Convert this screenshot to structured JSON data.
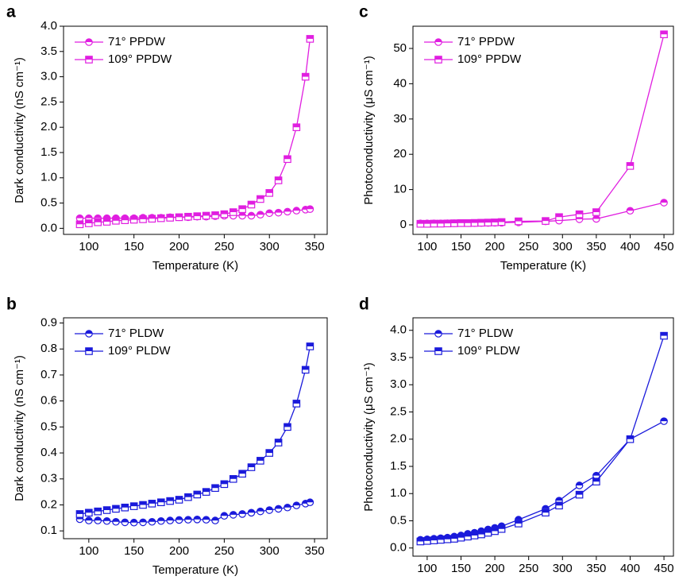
{
  "chart_data": [
    {
      "type": "line",
      "panel_label": "a",
      "xlabel": "Temperature (K)",
      "ylabel": "Dark conductivity (nS cm⁻¹)",
      "xlim": [
        72,
        364
      ],
      "xticks": [
        100,
        150,
        200,
        250,
        300,
        350
      ],
      "ylim": [
        -0.12,
        4.0
      ],
      "yticks": [
        {
          "value": 0,
          "label": "0.0"
        },
        0.5,
        {
          "value": 1,
          "label": "1.0"
        },
        1.5,
        {
          "value": 2,
          "label": "2.0"
        },
        2.5,
        {
          "value": 3,
          "label": "3.0"
        },
        3.5,
        {
          "value": 4,
          "label": "4.0"
        }
      ],
      "legend": "upper left",
      "x": [
        90,
        100,
        110,
        120,
        130,
        140,
        150,
        160,
        170,
        180,
        190,
        200,
        210,
        220,
        230,
        240,
        250,
        260,
        270,
        280,
        290,
        300,
        310,
        320,
        330,
        340,
        345
      ],
      "series": [
        {
          "name": "71°  PPDW",
          "color": "#e01ee0",
          "marker": "circle",
          "values": [
            0.2,
            0.2,
            0.2,
            0.2,
            0.2,
            0.2,
            0.2,
            0.21,
            0.21,
            0.21,
            0.22,
            0.22,
            0.22,
            0.23,
            0.23,
            0.24,
            0.25,
            0.25,
            0.25,
            0.25,
            0.27,
            0.3,
            0.31,
            0.33,
            0.35,
            0.37,
            0.38
          ]
        },
        {
          "name": "109°  PPDW",
          "color": "#e01ee0",
          "marker": "square",
          "values": [
            0.08,
            0.1,
            0.12,
            0.13,
            0.15,
            0.16,
            0.17,
            0.18,
            0.19,
            0.2,
            0.21,
            0.22,
            0.23,
            0.24,
            0.25,
            0.26,
            0.28,
            0.32,
            0.38,
            0.47,
            0.58,
            0.7,
            0.95,
            1.37,
            2.0,
            3.0,
            3.75
          ]
        }
      ]
    },
    {
      "type": "line",
      "panel_label": "b",
      "xlabel": "Temperature (K)",
      "ylabel": "Dark conductivity (nS cm⁻¹)",
      "xlim": [
        72,
        364
      ],
      "xticks": [
        100,
        150,
        200,
        250,
        300,
        350
      ],
      "ylim": [
        0.07,
        0.92
      ],
      "yticks": [
        0.1,
        0.2,
        0.3,
        0.4,
        0.5,
        0.6,
        0.7,
        0.8,
        0.9
      ],
      "legend": "upper left",
      "x": [
        90,
        100,
        110,
        120,
        130,
        140,
        150,
        160,
        170,
        180,
        190,
        200,
        210,
        220,
        230,
        240,
        250,
        260,
        270,
        280,
        290,
        300,
        310,
        320,
        330,
        340,
        345
      ],
      "series": [
        {
          "name": "71° PLDW",
          "color": "#1a1adb",
          "marker": "circle",
          "values": [
            0.145,
            0.14,
            0.14,
            0.138,
            0.135,
            0.133,
            0.132,
            0.133,
            0.135,
            0.138,
            0.14,
            0.142,
            0.143,
            0.144,
            0.143,
            0.14,
            0.158,
            0.162,
            0.165,
            0.17,
            0.175,
            0.18,
            0.185,
            0.19,
            0.198,
            0.205,
            0.21
          ]
        },
        {
          "name": "109° PLDW",
          "color": "#1a1adb",
          "marker": "square",
          "values": [
            0.165,
            0.17,
            0.175,
            0.18,
            0.185,
            0.19,
            0.195,
            0.2,
            0.205,
            0.21,
            0.215,
            0.22,
            0.23,
            0.24,
            0.25,
            0.265,
            0.28,
            0.3,
            0.32,
            0.345,
            0.37,
            0.4,
            0.44,
            0.5,
            0.59,
            0.72,
            0.81
          ]
        }
      ]
    },
    {
      "type": "line",
      "panel_label": "c",
      "xlabel": "Temperature (K)",
      "ylabel": "Photoconductivity (μS cm⁻¹)",
      "xlim": [
        79,
        464
      ],
      "xticks": [
        100,
        150,
        200,
        250,
        300,
        350,
        400,
        450
      ],
      "ylim": [
        -2.7,
        56.3
      ],
      "yticks": [
        0,
        10,
        20,
        30,
        40,
        50
      ],
      "legend": "upper left",
      "x": [
        90,
        100,
        110,
        120,
        130,
        140,
        150,
        160,
        170,
        180,
        190,
        200,
        210,
        235,
        275,
        295,
        325,
        350,
        400,
        450
      ],
      "series": [
        {
          "name": "71°  PPDW",
          "color": "#e01ee0",
          "marker": "circle",
          "values": [
            0.4,
            0.4,
            0.4,
            0.4,
            0.45,
            0.45,
            0.5,
            0.5,
            0.5,
            0.55,
            0.55,
            0.6,
            0.6,
            0.7,
            1.0,
            1.2,
            1.6,
            1.7,
            4.0,
            6.3
          ]
        },
        {
          "name": "109°  PPDW",
          "color": "#e01ee0",
          "marker": "square",
          "values": [
            0.3,
            0.3,
            0.35,
            0.35,
            0.4,
            0.45,
            0.5,
            0.5,
            0.55,
            0.6,
            0.65,
            0.7,
            0.8,
            1.0,
            1.1,
            2.2,
            3.0,
            3.6,
            16.7,
            54
          ]
        }
      ]
    },
    {
      "type": "line",
      "panel_label": "d",
      "xlabel": "Temperature (K)",
      "ylabel": "Photoconductivity (μS cm⁻¹)",
      "xlim": [
        79,
        464
      ],
      "xticks": [
        100,
        150,
        200,
        250,
        300,
        350,
        400,
        450
      ],
      "ylim": [
        -0.15,
        4.23
      ],
      "yticks": [
        {
          "value": 0,
          "label": "0.0"
        },
        0.5,
        {
          "value": 1,
          "label": "1.0"
        },
        1.5,
        {
          "value": 2,
          "label": "2.0"
        },
        2.5,
        {
          "value": 3,
          "label": "3.0"
        },
        3.5,
        {
          "value": 4,
          "label": "4.0"
        }
      ],
      "legend": "upper left",
      "x": [
        90,
        100,
        110,
        120,
        130,
        140,
        150,
        160,
        170,
        180,
        190,
        200,
        210,
        235,
        275,
        295,
        325,
        350,
        400,
        450
      ],
      "series": [
        {
          "name": "71° PLDW",
          "color": "#1a1adb",
          "marker": "circle",
          "values": [
            0.15,
            0.16,
            0.17,
            0.18,
            0.19,
            0.21,
            0.23,
            0.26,
            0.28,
            0.31,
            0.34,
            0.37,
            0.4,
            0.52,
            0.72,
            0.87,
            1.15,
            1.33,
            2.0,
            2.33
          ]
        },
        {
          "name": "109° PLDW",
          "color": "#1a1adb",
          "marker": "square",
          "values": [
            0.12,
            0.13,
            0.14,
            0.15,
            0.16,
            0.17,
            0.19,
            0.21,
            0.23,
            0.25,
            0.28,
            0.31,
            0.35,
            0.45,
            0.65,
            0.78,
            0.98,
            1.22,
            2.0,
            3.9
          ]
        }
      ]
    }
  ]
}
